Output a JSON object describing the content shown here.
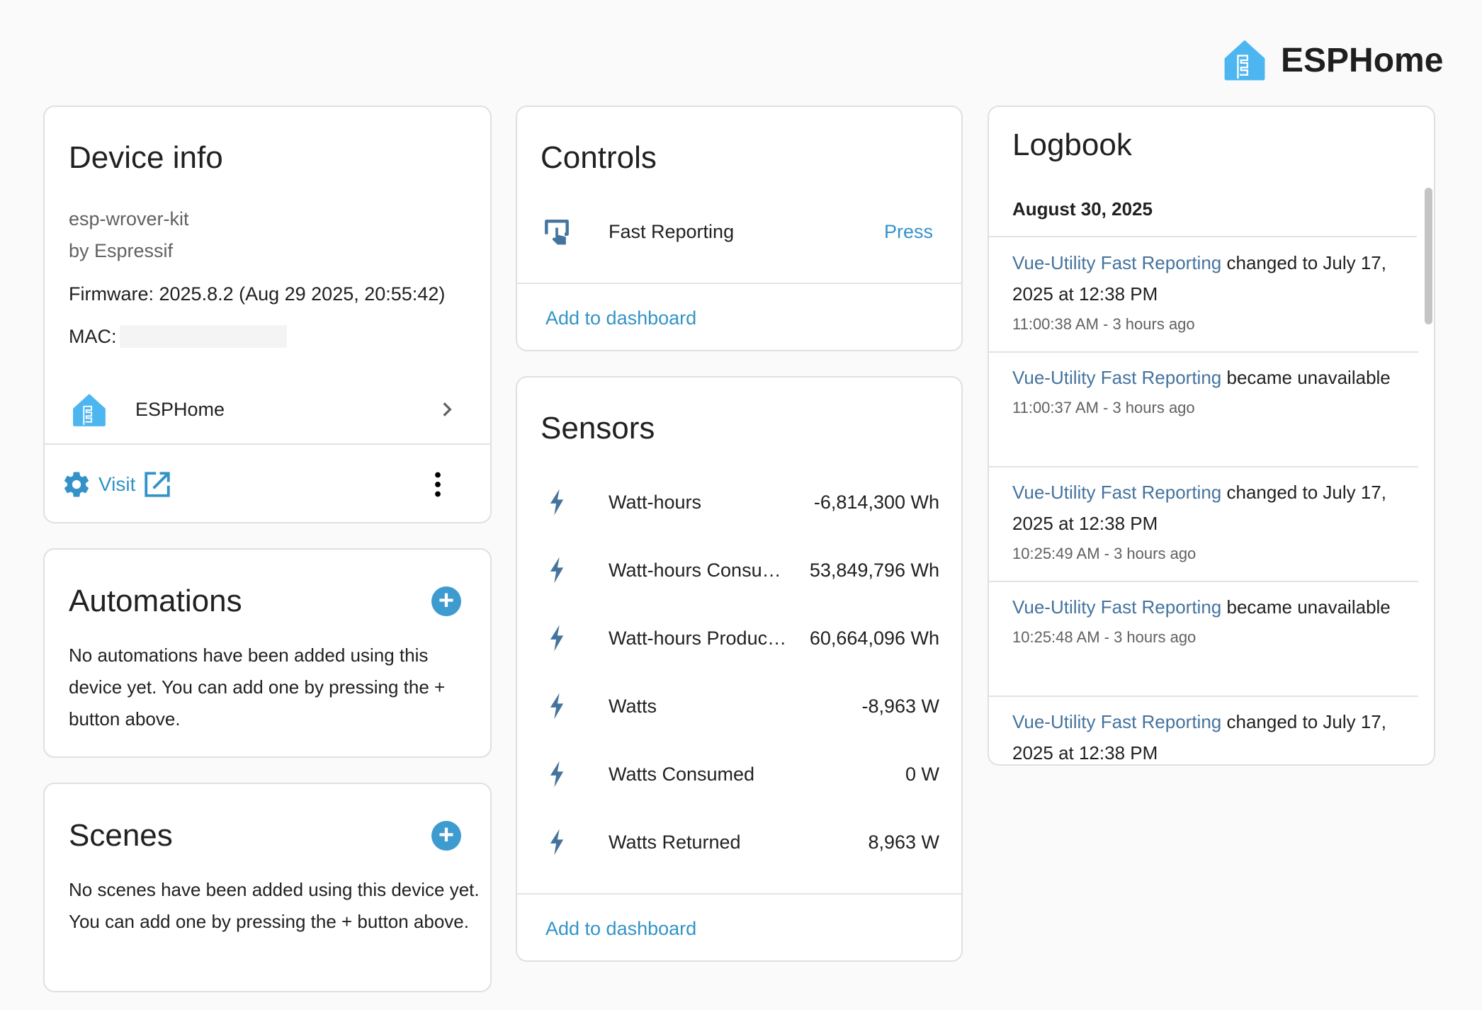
{
  "brand": {
    "name": "ESPHome",
    "icon": "esphome-logo-icon",
    "color": "#4db6f0"
  },
  "colors": {
    "link": "#3393c8",
    "state_icon": "#44739e",
    "logbook_entity": "#44739e"
  },
  "device_info": {
    "title": "Device info",
    "model": "esp-wrover-kit",
    "manufacturer": "by Espressif",
    "firmware": "Firmware: 2025.8.2 (Aug 29 2025, 20:55:42)",
    "mac_label": "MAC:",
    "integration": "ESPHome",
    "visit_label": "Visit"
  },
  "automations": {
    "title": "Automations",
    "empty_text": "No automations have been added using this device yet. You can add one by pressing the + button above."
  },
  "scenes": {
    "title": "Scenes",
    "empty_text": "No scenes have been added using this device yet. You can add one by pressing the + button above."
  },
  "controls": {
    "title": "Controls",
    "items": [
      {
        "name": "Fast Reporting",
        "action": "Press",
        "icon": "gesture-tap-button-icon"
      }
    ],
    "add_to_dashboard": "Add to dashboard"
  },
  "sensors": {
    "title": "Sensors",
    "items": [
      {
        "name": "Watt-hours",
        "value": "-6,814,300 Wh",
        "icon": "flash-icon"
      },
      {
        "name": "Watt-hours Consu…",
        "value": "53,849,796 Wh",
        "icon": "flash-icon"
      },
      {
        "name": "Watt-hours Produc…",
        "value": "60,664,096 Wh",
        "icon": "flash-icon"
      },
      {
        "name": "Watts",
        "value": "-8,963 W",
        "icon": "flash-icon"
      },
      {
        "name": "Watts Consumed",
        "value": "0 W",
        "icon": "flash-icon"
      },
      {
        "name": "Watts Returned",
        "value": "8,963 W",
        "icon": "flash-icon"
      }
    ],
    "add_to_dashboard": "Add to dashboard"
  },
  "logbook": {
    "title": "Logbook",
    "date": "August 30, 2025",
    "entries": [
      {
        "entity": "Vue-Utility Fast Reporting",
        "message": "changed to July 17, 2025 at 12:38 PM",
        "time": "11:00:38 AM - 3 hours ago"
      },
      {
        "entity": "Vue-Utility Fast Reporting",
        "message": "became unavailable",
        "time": "11:00:37 AM - 3 hours ago"
      },
      {
        "entity": "Vue-Utility Fast Reporting",
        "message": "changed to July 17, 2025 at 12:38 PM",
        "time": "10:25:49 AM - 3 hours ago"
      },
      {
        "entity": "Vue-Utility Fast Reporting",
        "message": "became unavailable",
        "time": "10:25:48 AM - 3 hours ago"
      },
      {
        "entity": "Vue-Utility Fast Reporting",
        "message": "changed to July 17, 2025 at 12:38 PM",
        "time": ""
      }
    ]
  }
}
